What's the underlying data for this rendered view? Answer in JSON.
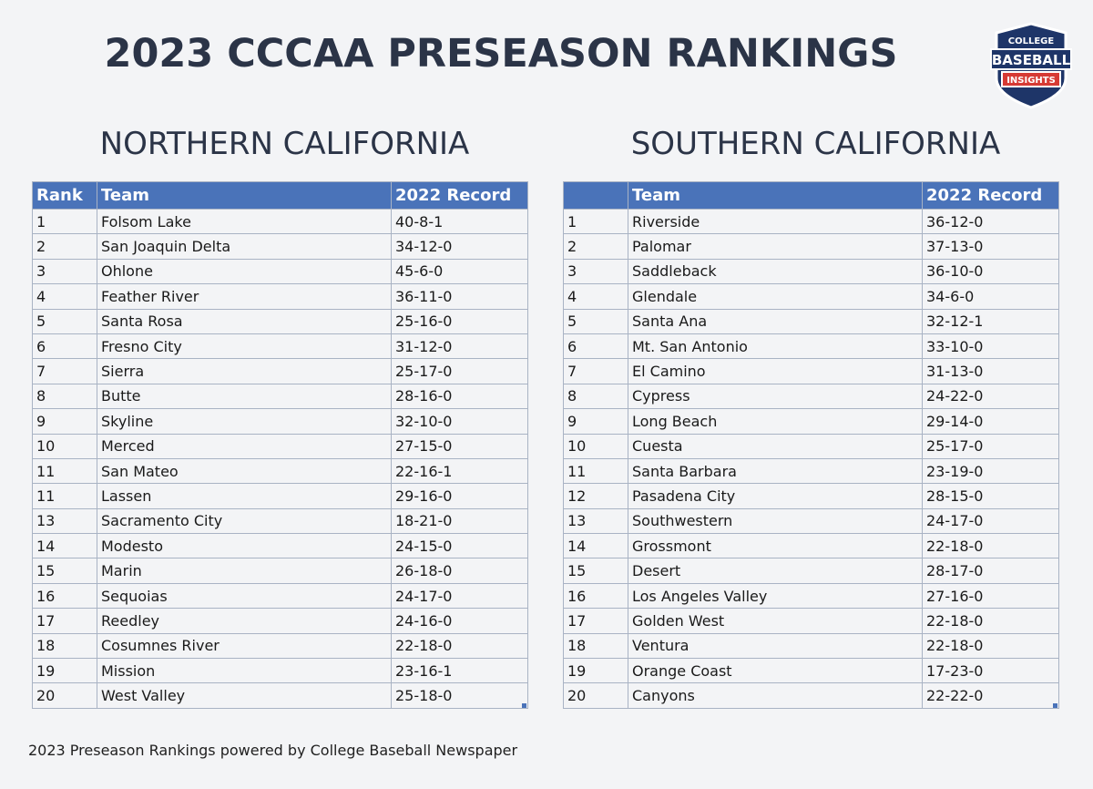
{
  "title": "2023 CCCAA PRESEASON RANKINGS",
  "logo": {
    "top_text": "COLLEGE",
    "main_text": "BASEBALL",
    "bottom_text": "INSIGHTS",
    "colors": {
      "navy": "#1e3568",
      "red": "#d63a34"
    }
  },
  "north": {
    "heading": "NORTHERN CALIFORNIA",
    "columns": [
      "Rank",
      "Team",
      "2022 Record"
    ],
    "rows": [
      [
        "1",
        "Folsom Lake",
        "40-8-1"
      ],
      [
        "2",
        "San Joaquin Delta",
        "34-12-0"
      ],
      [
        "3",
        "Ohlone",
        "45-6-0"
      ],
      [
        "4",
        "Feather River",
        "36-11-0"
      ],
      [
        "5",
        "Santa Rosa",
        "25-16-0"
      ],
      [
        "6",
        "Fresno City",
        "31-12-0"
      ],
      [
        "7",
        "Sierra",
        "25-17-0"
      ],
      [
        "8",
        "Butte",
        "28-16-0"
      ],
      [
        "9",
        "Skyline",
        "32-10-0"
      ],
      [
        "10",
        "Merced",
        "27-15-0"
      ],
      [
        "11",
        "San Mateo",
        "22-16-1"
      ],
      [
        "11",
        "Lassen",
        "29-16-0"
      ],
      [
        "13",
        "Sacramento City",
        "18-21-0"
      ],
      [
        "14",
        "Modesto",
        "24-15-0"
      ],
      [
        "15",
        "Marin",
        "26-18-0"
      ],
      [
        "16",
        "Sequoias",
        "24-17-0"
      ],
      [
        "17",
        "Reedley",
        "24-16-0"
      ],
      [
        "18",
        "Cosumnes River",
        "22-18-0"
      ],
      [
        "19",
        "Mission",
        "23-16-1"
      ],
      [
        "20",
        "West Valley",
        "25-18-0"
      ]
    ]
  },
  "south": {
    "heading": "SOUTHERN CALIFORNIA",
    "columns": [
      "",
      "Team",
      "2022 Record"
    ],
    "rows": [
      [
        "1",
        "Riverside",
        "36-12-0"
      ],
      [
        "2",
        "Palomar",
        "37-13-0"
      ],
      [
        "3",
        "Saddleback",
        "36-10-0"
      ],
      [
        "4",
        "Glendale",
        "34-6-0"
      ],
      [
        "5",
        "Santa Ana",
        "32-12-1"
      ],
      [
        "6",
        "Mt. San Antonio",
        "33-10-0"
      ],
      [
        "7",
        "El Camino",
        "31-13-0"
      ],
      [
        "8",
        "Cypress",
        "24-22-0"
      ],
      [
        "9",
        "Long Beach",
        "29-14-0"
      ],
      [
        "10",
        "Cuesta",
        "25-17-0"
      ],
      [
        "11",
        "Santa Barbara",
        "23-19-0"
      ],
      [
        "12",
        "Pasadena City",
        "28-15-0"
      ],
      [
        "13",
        "Southwestern",
        "24-17-0"
      ],
      [
        "14",
        "Grossmont",
        "22-18-0"
      ],
      [
        "15",
        "Desert",
        "28-17-0"
      ],
      [
        "16",
        "Los Angeles Valley",
        "27-16-0"
      ],
      [
        "17",
        "Golden West",
        "22-18-0"
      ],
      [
        "18",
        "Ventura",
        "22-18-0"
      ],
      [
        "19",
        "Orange Coast",
        "17-23-0"
      ],
      [
        "20",
        "Canyons",
        "22-22-0"
      ]
    ]
  },
  "footer": "2023 Preseason Rankings powered by College Baseball Newspaper",
  "colors": {
    "header_bg": "#4a73b9",
    "title": "#2b3447",
    "grid": "#a9b3c4",
    "background": "#f3f4f6"
  }
}
